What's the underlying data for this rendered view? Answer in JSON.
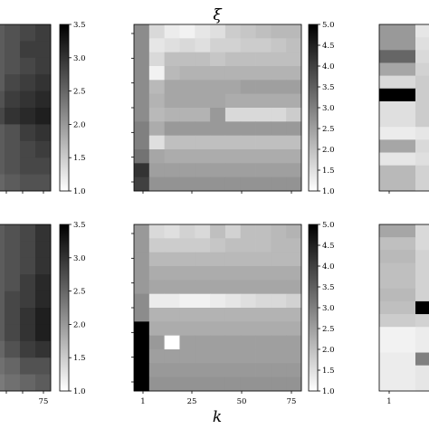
{
  "figure": {
    "title": "ξ",
    "xlabel": "k"
  },
  "chart_data": [
    {
      "type": "heatmap",
      "id": "top-left",
      "title": "",
      "colorbar": {
        "min": 1.0,
        "max": 3.5,
        "ticks": [
          "1.0",
          "1.5",
          "2.0",
          "2.5",
          "3.0",
          "3.5"
        ]
      },
      "xticklabels": [],
      "values": [
        [
          2.6,
          2.7,
          2.8,
          2.9
        ],
        [
          2.6,
          2.7,
          2.9,
          2.9
        ],
        [
          2.6,
          2.7,
          2.8,
          2.9
        ],
        [
          2.6,
          2.8,
          2.9,
          3.0
        ],
        [
          2.7,
          2.9,
          3.0,
          3.1
        ],
        [
          2.8,
          3.0,
          3.1,
          3.2
        ],
        [
          2.6,
          2.7,
          2.9,
          3.0
        ],
        [
          2.6,
          2.7,
          2.8,
          2.9
        ],
        [
          2.6,
          2.7,
          2.8,
          2.8
        ],
        [
          2.5,
          2.6,
          2.7,
          2.7
        ]
      ]
    },
    {
      "type": "heatmap",
      "id": "top-middle",
      "title": "ξ",
      "colorbar": {
        "min": 1.0,
        "max": 5.0,
        "ticks": [
          "1.0",
          "1.5",
          "2.0",
          "2.5",
          "3.0",
          "3.5",
          "4.0",
          "4.5",
          "5.0"
        ]
      },
      "xticklabels": [],
      "values": [
        [
          2.8,
          1.6,
          1.3,
          1.2,
          1.4,
          1.5,
          1.8,
          1.9,
          2.0,
          2.1,
          2.1
        ],
        [
          2.8,
          1.4,
          1.5,
          1.6,
          1.5,
          1.7,
          1.7,
          1.8,
          1.8,
          1.9,
          2.0
        ],
        [
          2.8,
          1.6,
          2.0,
          2.0,
          2.0,
          1.9,
          2.0,
          2.0,
          2.0,
          2.0,
          2.0
        ],
        [
          2.8,
          1.2,
          2.1,
          2.2,
          2.2,
          2.2,
          2.2,
          2.2,
          2.2,
          2.2,
          2.2
        ],
        [
          2.8,
          2.1,
          2.4,
          2.4,
          2.4,
          2.4,
          2.4,
          2.5,
          2.5,
          2.5,
          2.5
        ],
        [
          2.8,
          2.2,
          2.4,
          2.4,
          2.4,
          2.4,
          2.3,
          2.3,
          2.3,
          2.3,
          2.3
        ],
        [
          2.8,
          2.1,
          2.2,
          2.2,
          2.2,
          2.6,
          1.6,
          1.6,
          1.6,
          1.6,
          1.8
        ],
        [
          3.0,
          2.3,
          2.6,
          2.6,
          2.6,
          2.6,
          2.6,
          2.6,
          2.6,
          2.6,
          2.6
        ],
        [
          3.0,
          1.5,
          2.0,
          2.0,
          2.0,
          2.0,
          2.0,
          2.0,
          2.0,
          2.0,
          2.0
        ],
        [
          3.2,
          2.4,
          2.3,
          2.3,
          2.3,
          2.3,
          2.3,
          2.3,
          2.3,
          2.3,
          2.3
        ],
        [
          4.2,
          2.5,
          2.5,
          2.5,
          2.5,
          2.5,
          2.5,
          2.5,
          2.5,
          2.5,
          2.5
        ],
        [
          4.0,
          2.7,
          2.7,
          2.7,
          2.7,
          2.7,
          2.7,
          2.7,
          2.7,
          2.7,
          2.7
        ]
      ]
    },
    {
      "type": "heatmap",
      "id": "top-right",
      "title": "",
      "xticklabels": [],
      "values": [
        [
          2.6,
          1.4
        ],
        [
          2.6,
          1.5
        ],
        [
          3.4,
          1.6
        ],
        [
          2.4,
          1.7
        ],
        [
          1.6,
          1.8
        ],
        [
          5.0,
          1.8
        ],
        [
          1.5,
          1.8
        ],
        [
          1.5,
          1.8
        ],
        [
          1.3,
          1.4
        ],
        [
          2.4,
          1.6
        ],
        [
          1.4,
          1.5
        ],
        [
          2.1,
          1.7
        ],
        [
          2.1,
          1.7
        ]
      ]
    },
    {
      "type": "heatmap",
      "id": "bottom-left",
      "title": "",
      "colorbar": {
        "min": 1.0,
        "max": 3.5,
        "ticks": [
          "1.0",
          "1.5",
          "2.0",
          "2.5",
          "3.0",
          "3.5"
        ]
      },
      "xticklabels": [
        "75"
      ],
      "values": [
        [
          2.6,
          2.7,
          2.8,
          3.0
        ],
        [
          2.6,
          2.7,
          2.8,
          3.0
        ],
        [
          2.6,
          2.7,
          2.8,
          3.0
        ],
        [
          2.6,
          2.7,
          2.9,
          3.1
        ],
        [
          2.6,
          2.8,
          2.9,
          3.1
        ],
        [
          2.6,
          2.8,
          3.0,
          3.2
        ],
        [
          2.6,
          2.8,
          3.0,
          3.2
        ],
        [
          2.5,
          2.7,
          2.9,
          3.0
        ],
        [
          2.4,
          2.5,
          2.7,
          2.7
        ],
        [
          2.3,
          2.4,
          2.5,
          2.6
        ]
      ]
    },
    {
      "type": "heatmap",
      "id": "bottom-middle",
      "title": "",
      "colorbar": {
        "min": 1.0,
        "max": 5.0,
        "ticks": [
          "1.0",
          "1.5",
          "2.0",
          "2.5",
          "3.0",
          "3.5",
          "4.0",
          "4.5",
          "5.0"
        ]
      },
      "xticklabels": [
        "1",
        "25",
        "50",
        "75"
      ],
      "values": [
        [
          2.6,
          1.6,
          1.5,
          1.7,
          1.6,
          2.0,
          1.7,
          2.0,
          2.0,
          2.1,
          2.2
        ],
        [
          2.6,
          1.8,
          1.8,
          1.8,
          1.8,
          1.9,
          2.0,
          2.0,
          2.0,
          2.1,
          2.1
        ],
        [
          2.6,
          2.1,
          2.1,
          2.1,
          2.1,
          2.1,
          2.1,
          2.1,
          2.1,
          2.1,
          2.1
        ],
        [
          2.6,
          2.3,
          2.3,
          2.3,
          2.3,
          2.3,
          2.3,
          2.3,
          2.3,
          2.3,
          2.3
        ],
        [
          2.6,
          2.4,
          2.4,
          2.4,
          2.4,
          2.4,
          2.4,
          2.4,
          2.4,
          2.4,
          2.4
        ],
        [
          2.8,
          1.3,
          1.3,
          1.2,
          1.2,
          1.3,
          1.4,
          1.5,
          1.6,
          1.6,
          1.7
        ],
        [
          2.8,
          2.2,
          2.2,
          2.2,
          2.2,
          2.2,
          2.2,
          2.2,
          2.2,
          2.2,
          2.2
        ],
        [
          5.0,
          2.3,
          2.3,
          2.3,
          2.3,
          2.3,
          2.3,
          2.3,
          2.3,
          2.3,
          2.3
        ],
        [
          5.0,
          2.6,
          1.0,
          2.5,
          2.5,
          2.5,
          2.5,
          2.5,
          2.5,
          2.5,
          2.5
        ],
        [
          5.0,
          2.5,
          2.5,
          2.5,
          2.5,
          2.5,
          2.5,
          2.5,
          2.5,
          2.5,
          2.5
        ],
        [
          5.0,
          2.6,
          2.6,
          2.6,
          2.6,
          2.6,
          2.6,
          2.6,
          2.6,
          2.6,
          2.6
        ],
        [
          5.0,
          2.7,
          2.7,
          2.7,
          2.7,
          2.7,
          2.7,
          2.7,
          2.7,
          2.7,
          2.7
        ]
      ]
    },
    {
      "type": "heatmap",
      "id": "bottom-right",
      "title": "",
      "xticklabels": [
        "1"
      ],
      "values": [
        [
          2.4,
          1.6
        ],
        [
          2.0,
          1.6
        ],
        [
          2.1,
          1.7
        ],
        [
          2.0,
          1.7
        ],
        [
          2.0,
          1.7
        ],
        [
          2.1,
          1.7
        ],
        [
          2.0,
          5.0
        ],
        [
          1.8,
          1.7
        ],
        [
          1.2,
          1.3
        ],
        [
          1.2,
          1.3
        ],
        [
          1.3,
          3.0
        ],
        [
          1.3,
          1.4
        ],
        [
          1.3,
          1.4
        ]
      ]
    }
  ]
}
